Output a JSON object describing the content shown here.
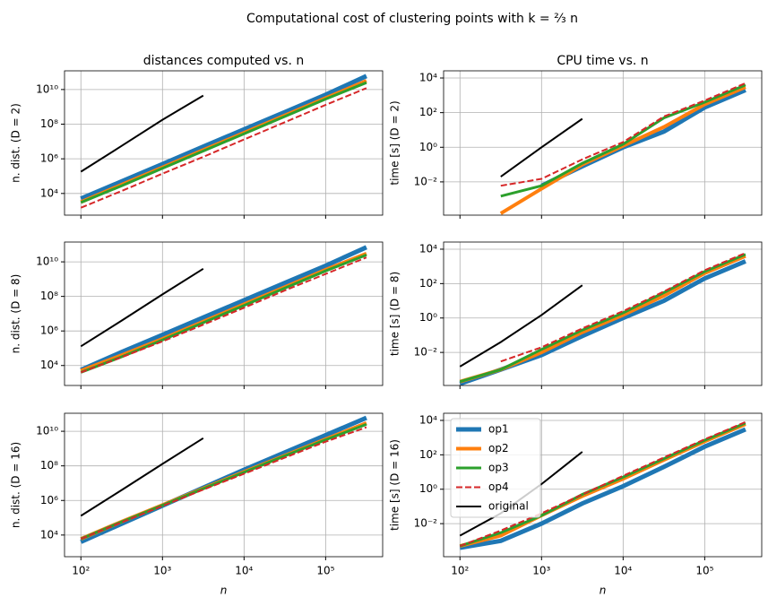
{
  "title": "Computational cost of clustering points with k = ⅔ n",
  "chart_data": [
    {
      "type": "line",
      "title": "distances computed vs. n",
      "ylabel": "n. dist. (D = 2)",
      "xscale": "log",
      "yscale": "log",
      "grid": true,
      "x": [
        100,
        316,
        1000,
        3162,
        10000,
        31623,
        100000,
        316228
      ],
      "xlim": [
        63,
        500000
      ],
      "xticks": [
        100,
        1000,
        10000,
        100000
      ],
      "ylim": [
        560,
        120000000000
      ],
      "yticks": [
        {
          "value": 10000,
          "label": "10⁴"
        },
        {
          "value": 1000000,
          "label": "10⁶"
        },
        {
          "value": 100000000,
          "label": "10⁸"
        },
        {
          "value": 10000000000,
          "label": "10¹⁰"
        }
      ],
      "series": [
        {
          "color": "#1f77b4",
          "linewidth": 5,
          "linestyle": "solid",
          "values": [
            5000,
            50000,
            500000,
            5000000,
            50000000,
            500000000,
            5000000000,
            60000000000
          ]
        },
        {
          "color": "#ff7f0e",
          "linewidth": 4,
          "linestyle": "solid",
          "values": [
            3200,
            32000,
            320000,
            3200000,
            32000000,
            320000000,
            3200000000,
            32000000000
          ]
        },
        {
          "color": "#2ca02c",
          "linewidth": 3,
          "linestyle": "solid",
          "values": [
            3000,
            28000,
            280000,
            2800000,
            28000000,
            280000000,
            2800000000,
            25000000000
          ]
        },
        {
          "color": "#d62728",
          "linewidth": 2,
          "linestyle": "dashed",
          "values": [
            1500,
            14000,
            140000,
            1300000,
            13000000,
            130000000,
            1300000000,
            12000000000
          ]
        },
        {
          "color": "#000000",
          "linewidth": 2,
          "linestyle": "solid",
          "values": [
            180000,
            5600000,
            180000000,
            4500000000,
            null,
            null,
            null,
            null
          ]
        }
      ]
    },
    {
      "type": "line",
      "title": "CPU time vs. n",
      "ylabel": "time [s] (D = 2)",
      "xscale": "log",
      "yscale": "log",
      "grid": true,
      "x": [
        100,
        316,
        1000,
        3162,
        10000,
        31623,
        100000,
        316228
      ],
      "xlim": [
        63,
        500000
      ],
      "xticks": [
        100,
        1000,
        10000,
        100000
      ],
      "ylim": [
        0.00012,
        26000
      ],
      "yticks": [
        {
          "value": 0.01,
          "label": "10⁻²"
        },
        {
          "value": 1,
          "label": "10⁰"
        },
        {
          "value": 100,
          "label": "10²"
        },
        {
          "value": 10000,
          "label": "10⁴"
        }
      ],
      "series": [
        {
          "color": "#1f77b4",
          "linewidth": 5,
          "linestyle": "solid",
          "values": [
            null,
            null,
            0.006,
            0.08,
            1,
            8,
            200,
            2000
          ]
        },
        {
          "color": "#ff7f0e",
          "linewidth": 4,
          "linestyle": "solid",
          "values": [
            null,
            0.00015,
            0.004,
            0.1,
            1.2,
            15,
            300,
            3000
          ]
        },
        {
          "color": "#2ca02c",
          "linewidth": 3,
          "linestyle": "solid",
          "values": [
            null,
            0.0015,
            0.006,
            0.12,
            1.5,
            50,
            400,
            4000
          ]
        },
        {
          "color": "#d62728",
          "linewidth": 2,
          "linestyle": "dashed",
          "values": [
            null,
            0.006,
            0.015,
            0.2,
            2,
            60,
            500,
            5000
          ]
        },
        {
          "color": "#000000",
          "linewidth": 2,
          "linestyle": "solid",
          "values": [
            null,
            0.02,
            1,
            44,
            null,
            null,
            null,
            null
          ]
        }
      ]
    },
    {
      "type": "line",
      "ylabel": "n. dist. (D = 8)",
      "xscale": "log",
      "yscale": "log",
      "grid": true,
      "x": [
        100,
        316,
        1000,
        3162,
        10000,
        31623,
        100000,
        316228
      ],
      "xlim": [
        63,
        500000
      ],
      "xticks": [
        100,
        1000,
        10000,
        100000
      ],
      "ylim": [
        700,
        140000000000
      ],
      "yticks": [
        {
          "value": 10000,
          "label": "10⁴"
        },
        {
          "value": 1000000,
          "label": "10⁶"
        },
        {
          "value": 100000000,
          "label": "10⁸"
        },
        {
          "value": 10000000000,
          "label": "10¹⁰"
        }
      ],
      "series": [
        {
          "color": "#1f77b4",
          "linewidth": 5,
          "linestyle": "solid",
          "values": [
            5500,
            60000,
            600000,
            6000000,
            60000000,
            600000000,
            6000000000,
            70000000000
          ]
        },
        {
          "color": "#ff7f0e",
          "linewidth": 4,
          "linestyle": "solid",
          "values": [
            5000,
            40000,
            350000,
            3500000,
            35000000,
            350000000,
            3500000000,
            30000000000
          ]
        },
        {
          "color": "#2ca02c",
          "linewidth": 3,
          "linestyle": "solid",
          "values": [
            4000,
            32000,
            300000,
            3000000,
            30000000,
            300000000,
            3000000000,
            25000000000
          ]
        },
        {
          "color": "#d62728",
          "linewidth": 2,
          "linestyle": "dashed",
          "values": [
            4000,
            30000,
            250000,
            2300000,
            22000000,
            220000000,
            2000000000,
            18000000000
          ]
        },
        {
          "color": "#000000",
          "linewidth": 2,
          "linestyle": "solid",
          "values": [
            130000,
            4000000,
            130000000,
            4000000000,
            null,
            null,
            null,
            null
          ]
        }
      ]
    },
    {
      "type": "line",
      "ylabel": "time [s] (D = 8)",
      "xscale": "log",
      "yscale": "log",
      "grid": true,
      "x": [
        100,
        316,
        1000,
        3162,
        10000,
        31623,
        100000,
        316228
      ],
      "xlim": [
        63,
        500000
      ],
      "xticks": [
        100,
        1000,
        10000,
        100000
      ],
      "ylim": [
        0.00012,
        26000
      ],
      "yticks": [
        {
          "value": 0.01,
          "label": "10⁻²"
        },
        {
          "value": 1,
          "label": "10⁰"
        },
        {
          "value": 100,
          "label": "10²"
        },
        {
          "value": 10000,
          "label": "10⁴"
        }
      ],
      "series": [
        {
          "color": "#1f77b4",
          "linewidth": 5,
          "linestyle": "solid",
          "values": [
            0.00015,
            0.001,
            0.007,
            0.09,
            1,
            10,
            200,
            2000
          ]
        },
        {
          "color": "#ff7f0e",
          "linewidth": 4,
          "linestyle": "solid",
          "values": [
            0.0002,
            0.001,
            0.01,
            0.15,
            1.5,
            20,
            400,
            4000
          ]
        },
        {
          "color": "#2ca02c",
          "linewidth": 3,
          "linestyle": "solid",
          "values": [
            0.0002,
            0.001,
            0.015,
            0.2,
            2,
            30,
            500,
            5000
          ]
        },
        {
          "color": "#d62728",
          "linewidth": 2,
          "linestyle": "dashed",
          "values": [
            null,
            0.003,
            0.02,
            0.25,
            2.5,
            35,
            600,
            6000
          ]
        },
        {
          "color": "#000000",
          "linewidth": 2,
          "linestyle": "solid",
          "values": [
            0.0015,
            0.04,
            1.5,
            80,
            null,
            null,
            null,
            null
          ]
        }
      ]
    },
    {
      "type": "line",
      "ylabel": "n. dist. (D = 16)",
      "xlabel": "n",
      "xscale": "log",
      "yscale": "log",
      "grid": true,
      "x": [
        100,
        316,
        1000,
        3162,
        10000,
        31623,
        100000,
        316228
      ],
      "xlim": [
        63,
        500000
      ],
      "xticks": [
        {
          "value": 100,
          "label": "10²"
        },
        {
          "value": 1000,
          "label": "10³"
        },
        {
          "value": 10000,
          "label": "10⁴"
        },
        {
          "value": 100000,
          "label": "10⁵"
        }
      ],
      "ylim": [
        560,
        110000000000
      ],
      "yticks": [
        {
          "value": 10000,
          "label": "10⁴"
        },
        {
          "value": 1000000,
          "label": "10⁶"
        },
        {
          "value": 100000000,
          "label": "10⁸"
        },
        {
          "value": 10000000000,
          "label": "10¹⁰"
        }
      ],
      "series": [
        {
          "color": "#1f77b4",
          "linewidth": 5,
          "linestyle": "solid",
          "values": [
            4000,
            45000,
            500000,
            5500000,
            60000000,
            600000000,
            6000000000,
            60000000000
          ]
        },
        {
          "color": "#ff7f0e",
          "linewidth": 4,
          "linestyle": "solid",
          "values": [
            6000,
            60000,
            550000,
            5000000,
            45000000,
            400000000,
            3500000000,
            30000000000
          ]
        },
        {
          "color": "#2ca02c",
          "linewidth": 3,
          "linestyle": "solid",
          "values": [
            6000,
            58000,
            520000,
            4800000,
            42000000,
            380000000,
            3200000000,
            25000000000
          ]
        },
        {
          "color": "#d62728",
          "linewidth": 2,
          "linestyle": "dashed",
          "values": [
            6000,
            55000,
            480000,
            4200000,
            35000000,
            300000000,
            2500000000,
            17000000000
          ]
        },
        {
          "color": "#000000",
          "linewidth": 2,
          "linestyle": "solid",
          "values": [
            130000,
            4000000,
            130000000,
            4000000000,
            null,
            null,
            null,
            null
          ]
        }
      ]
    },
    {
      "type": "line",
      "ylabel": "time [s] (D = 16)",
      "xlabel": "n",
      "xscale": "log",
      "yscale": "log",
      "grid": true,
      "legend": "upper left",
      "x": [
        100,
        316,
        1000,
        3162,
        10000,
        31623,
        100000,
        316228
      ],
      "xlim": [
        63,
        500000
      ],
      "xticks": [
        {
          "value": 100,
          "label": "10²"
        },
        {
          "value": 1000,
          "label": "10³"
        },
        {
          "value": 10000,
          "label": "10⁴"
        },
        {
          "value": 100000,
          "label": "10⁵"
        }
      ],
      "ylim": [
        0.00012,
        26000
      ],
      "yticks": [
        {
          "value": 0.01,
          "label": "10⁻²"
        },
        {
          "value": 1,
          "label": "10⁰"
        },
        {
          "value": 100,
          "label": "10²"
        },
        {
          "value": 10000,
          "label": "10⁴"
        }
      ],
      "series": [
        {
          "name": "op1",
          "color": "#1f77b4",
          "linewidth": 5,
          "linestyle": "solid",
          "values": [
            0.0004,
            0.001,
            0.01,
            0.15,
            1.5,
            20,
            300,
            3000
          ]
        },
        {
          "name": "op2",
          "color": "#ff7f0e",
          "linewidth": 4,
          "linestyle": "solid",
          "values": [
            0.0005,
            0.002,
            0.03,
            0.4,
            4,
            50,
            600,
            6000
          ]
        },
        {
          "name": "op3",
          "color": "#2ca02c",
          "linewidth": 3,
          "linestyle": "solid",
          "values": [
            0.0005,
            0.003,
            0.03,
            0.5,
            5,
            60,
            700,
            7000
          ]
        },
        {
          "name": "op4",
          "color": "#d62728",
          "linewidth": 2,
          "linestyle": "dashed",
          "values": [
            0.0005,
            0.004,
            0.04,
            0.5,
            6,
            70,
            800,
            8000
          ]
        },
        {
          "name": "original",
          "color": "#000000",
          "linewidth": 2,
          "linestyle": "solid",
          "values": [
            0.002,
            0.04,
            2,
            150,
            null,
            null,
            null,
            null
          ]
        }
      ]
    }
  ]
}
